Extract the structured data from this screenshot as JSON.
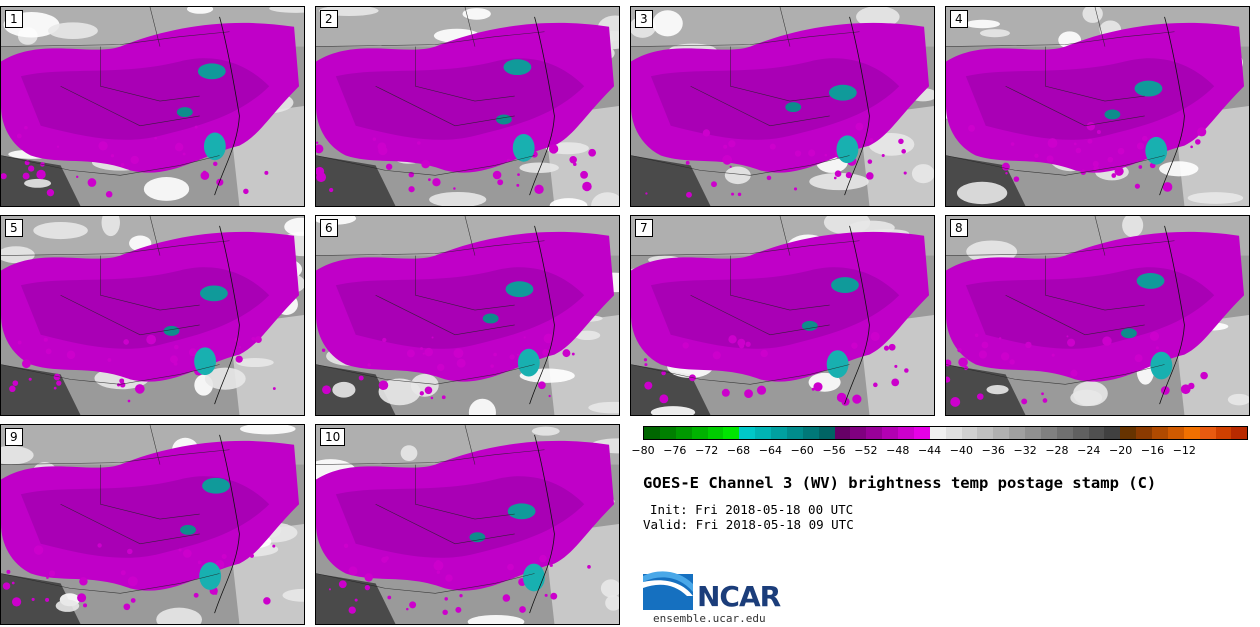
{
  "panels": [
    {
      "label": "1"
    },
    {
      "label": "2"
    },
    {
      "label": "3"
    },
    {
      "label": "4"
    },
    {
      "label": "5"
    },
    {
      "label": "6"
    },
    {
      "label": "7"
    },
    {
      "label": "8"
    },
    {
      "label": "9"
    },
    {
      "label": "10"
    }
  ],
  "colorbar": {
    "colors": [
      "#006600",
      "#008000",
      "#009900",
      "#00b300",
      "#00cc00",
      "#00e600",
      "#00c8c8",
      "#00b4b4",
      "#00a0a0",
      "#008c8c",
      "#007878",
      "#006464",
      "#660066",
      "#800080",
      "#990099",
      "#b300b3",
      "#cc00cc",
      "#e600e6",
      "#f0f0f0",
      "#e0e0e0",
      "#d0d0d0",
      "#c0c0c0",
      "#b0b0b0",
      "#a0a0a0",
      "#909090",
      "#808080",
      "#707070",
      "#606060",
      "#505050",
      "#404040",
      "#663300",
      "#8b3a00",
      "#b04a00",
      "#d05a00",
      "#f07000",
      "#e85a10",
      "#d04000",
      "#b82a00"
    ],
    "tick_labels": [
      "−80",
      "−76",
      "−72",
      "−68",
      "−64",
      "−60",
      "−56",
      "−52",
      "−48",
      "−44",
      "−40",
      "−36",
      "−32",
      "−28",
      "−24",
      "−20",
      "−16",
      "−12"
    ]
  },
  "title": "GOES-E Channel 3 (WV) brightness temp postage stamp (C)",
  "init": "Init: Fri 2018-05-18 00 UTC",
  "valid": "Valid: Fri 2018-05-18 09 UTC",
  "logo_text": "NCAR",
  "url": "ensemble.ucar.edu"
}
